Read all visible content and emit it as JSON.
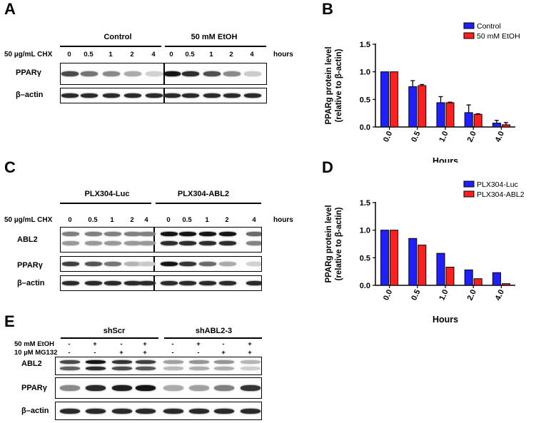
{
  "panels": {
    "A": {
      "letter": "A",
      "groups": [
        "Control",
        "50 mM EtOH"
      ],
      "cond_label": "50 µg/mL CHX",
      "lanes": [
        "0",
        "0.5",
        "1",
        "2",
        "4",
        "0",
        "0.5",
        "1",
        "2",
        "4"
      ],
      "unit": "hours",
      "rows": [
        {
          "name": "PPARγ",
          "intensities": [
            0.75,
            0.55,
            0.45,
            0.3,
            0.12,
            1.0,
            0.88,
            0.72,
            0.45,
            0.15
          ]
        },
        {
          "name": "β–actin",
          "intensities": [
            0.9,
            0.9,
            0.9,
            0.9,
            0.9,
            0.9,
            0.9,
            0.9,
            0.9,
            0.9
          ]
        }
      ]
    },
    "B": {
      "letter": "B"
    },
    "C": {
      "letter": "C",
      "groups": [
        "PLX304-Luc",
        "PLX304-ABL2"
      ],
      "cond_label": "50 µg/mL CHX",
      "lanes": [
        "0",
        "0.5",
        "1",
        "2",
        "4",
        "0",
        "0.5",
        "1",
        "2",
        "4"
      ],
      "unit": "hours",
      "rows": [
        {
          "name": "ABL2",
          "intensities": [
            0.5,
            0.5,
            0.5,
            0.5,
            0.5,
            1.0,
            1.0,
            1.0,
            1.0,
            0.6
          ]
        },
        {
          "name": "PPARγ",
          "intensities": [
            0.8,
            0.7,
            0.55,
            0.25,
            0.15,
            1.0,
            0.85,
            0.6,
            0.3,
            0.12
          ]
        },
        {
          "name": "β–actin",
          "intensities": [
            0.9,
            0.9,
            0.9,
            0.9,
            0.9,
            0.9,
            0.9,
            0.9,
            0.9,
            0.9
          ]
        }
      ]
    },
    "D": {
      "letter": "D"
    },
    "E": {
      "letter": "E",
      "groups": [
        "shScr",
        "shABL2-3"
      ],
      "cond_rows": [
        {
          "label": "50 mM EtOH",
          "values": [
            "-",
            "+",
            "-",
            "+",
            "-",
            "+",
            "-",
            "+"
          ]
        },
        {
          "label": "10 µM MG132",
          "values": [
            "-",
            "-",
            "+",
            "+",
            "-",
            "-",
            "+",
            "+"
          ]
        }
      ],
      "rows": [
        {
          "name": "ABL2",
          "intensities": [
            0.75,
            1.0,
            0.85,
            0.8,
            0.35,
            0.4,
            0.4,
            0.25
          ]
        },
        {
          "name": "PPARγ",
          "intensities": [
            0.45,
            0.9,
            0.95,
            1.0,
            0.3,
            0.35,
            0.5,
            0.85
          ]
        },
        {
          "name": "β–actin",
          "intensities": [
            0.9,
            0.9,
            0.9,
            0.9,
            0.9,
            0.9,
            0.9,
            0.9
          ]
        }
      ]
    }
  },
  "chart_data": [
    {
      "type": "bar",
      "panel": "B",
      "categories": [
        "0.0",
        "0.5",
        "1.0",
        "2.0",
        "4.0"
      ],
      "series": [
        {
          "name": "Control",
          "color": "#1f1fff",
          "values": [
            1.0,
            0.73,
            0.44,
            0.26,
            0.07
          ],
          "errors": [
            0,
            0.11,
            0.11,
            0.14,
            0.05
          ]
        },
        {
          "name": "50 mM EtOH",
          "color": "#ff1f1f",
          "values": [
            1.0,
            0.75,
            0.44,
            0.23,
            0.04
          ],
          "errors": [
            0,
            0.02,
            0.01,
            0.01,
            0.04
          ]
        }
      ],
      "xlabel": "Hours",
      "ylabel": "PPARg protein level (relative to β-actin)",
      "ylabel_lines": [
        "PPARg protein level",
        "(relative to β-actin)"
      ],
      "ylim": [
        0,
        1.5
      ],
      "yticks": [
        "0.0",
        "0.5",
        "1.0",
        "1.5"
      ],
      "legend": "top-right",
      "grid": false
    },
    {
      "type": "bar",
      "panel": "D",
      "categories": [
        "0.0",
        "0.5",
        "1.0",
        "2.0",
        "4.0"
      ],
      "series": [
        {
          "name": "PLX304-Luc",
          "color": "#1f1fff",
          "values": [
            1.0,
            0.85,
            0.58,
            0.28,
            0.23
          ]
        },
        {
          "name": "PLX304-ABL2",
          "color": "#ff1f1f",
          "values": [
            1.0,
            0.73,
            0.33,
            0.12,
            0.03
          ]
        }
      ],
      "xlabel": "Hours",
      "ylabel": "PPARg protein level (relative to β-actin)",
      "ylabel_lines": [
        "PPARg protein level",
        "(relative to β-actin)"
      ],
      "ylim": [
        0,
        1.5
      ],
      "yticks": [
        "0.0",
        "0.5",
        "1.0",
        "1.5"
      ],
      "legend": "top-right",
      "grid": false
    }
  ]
}
